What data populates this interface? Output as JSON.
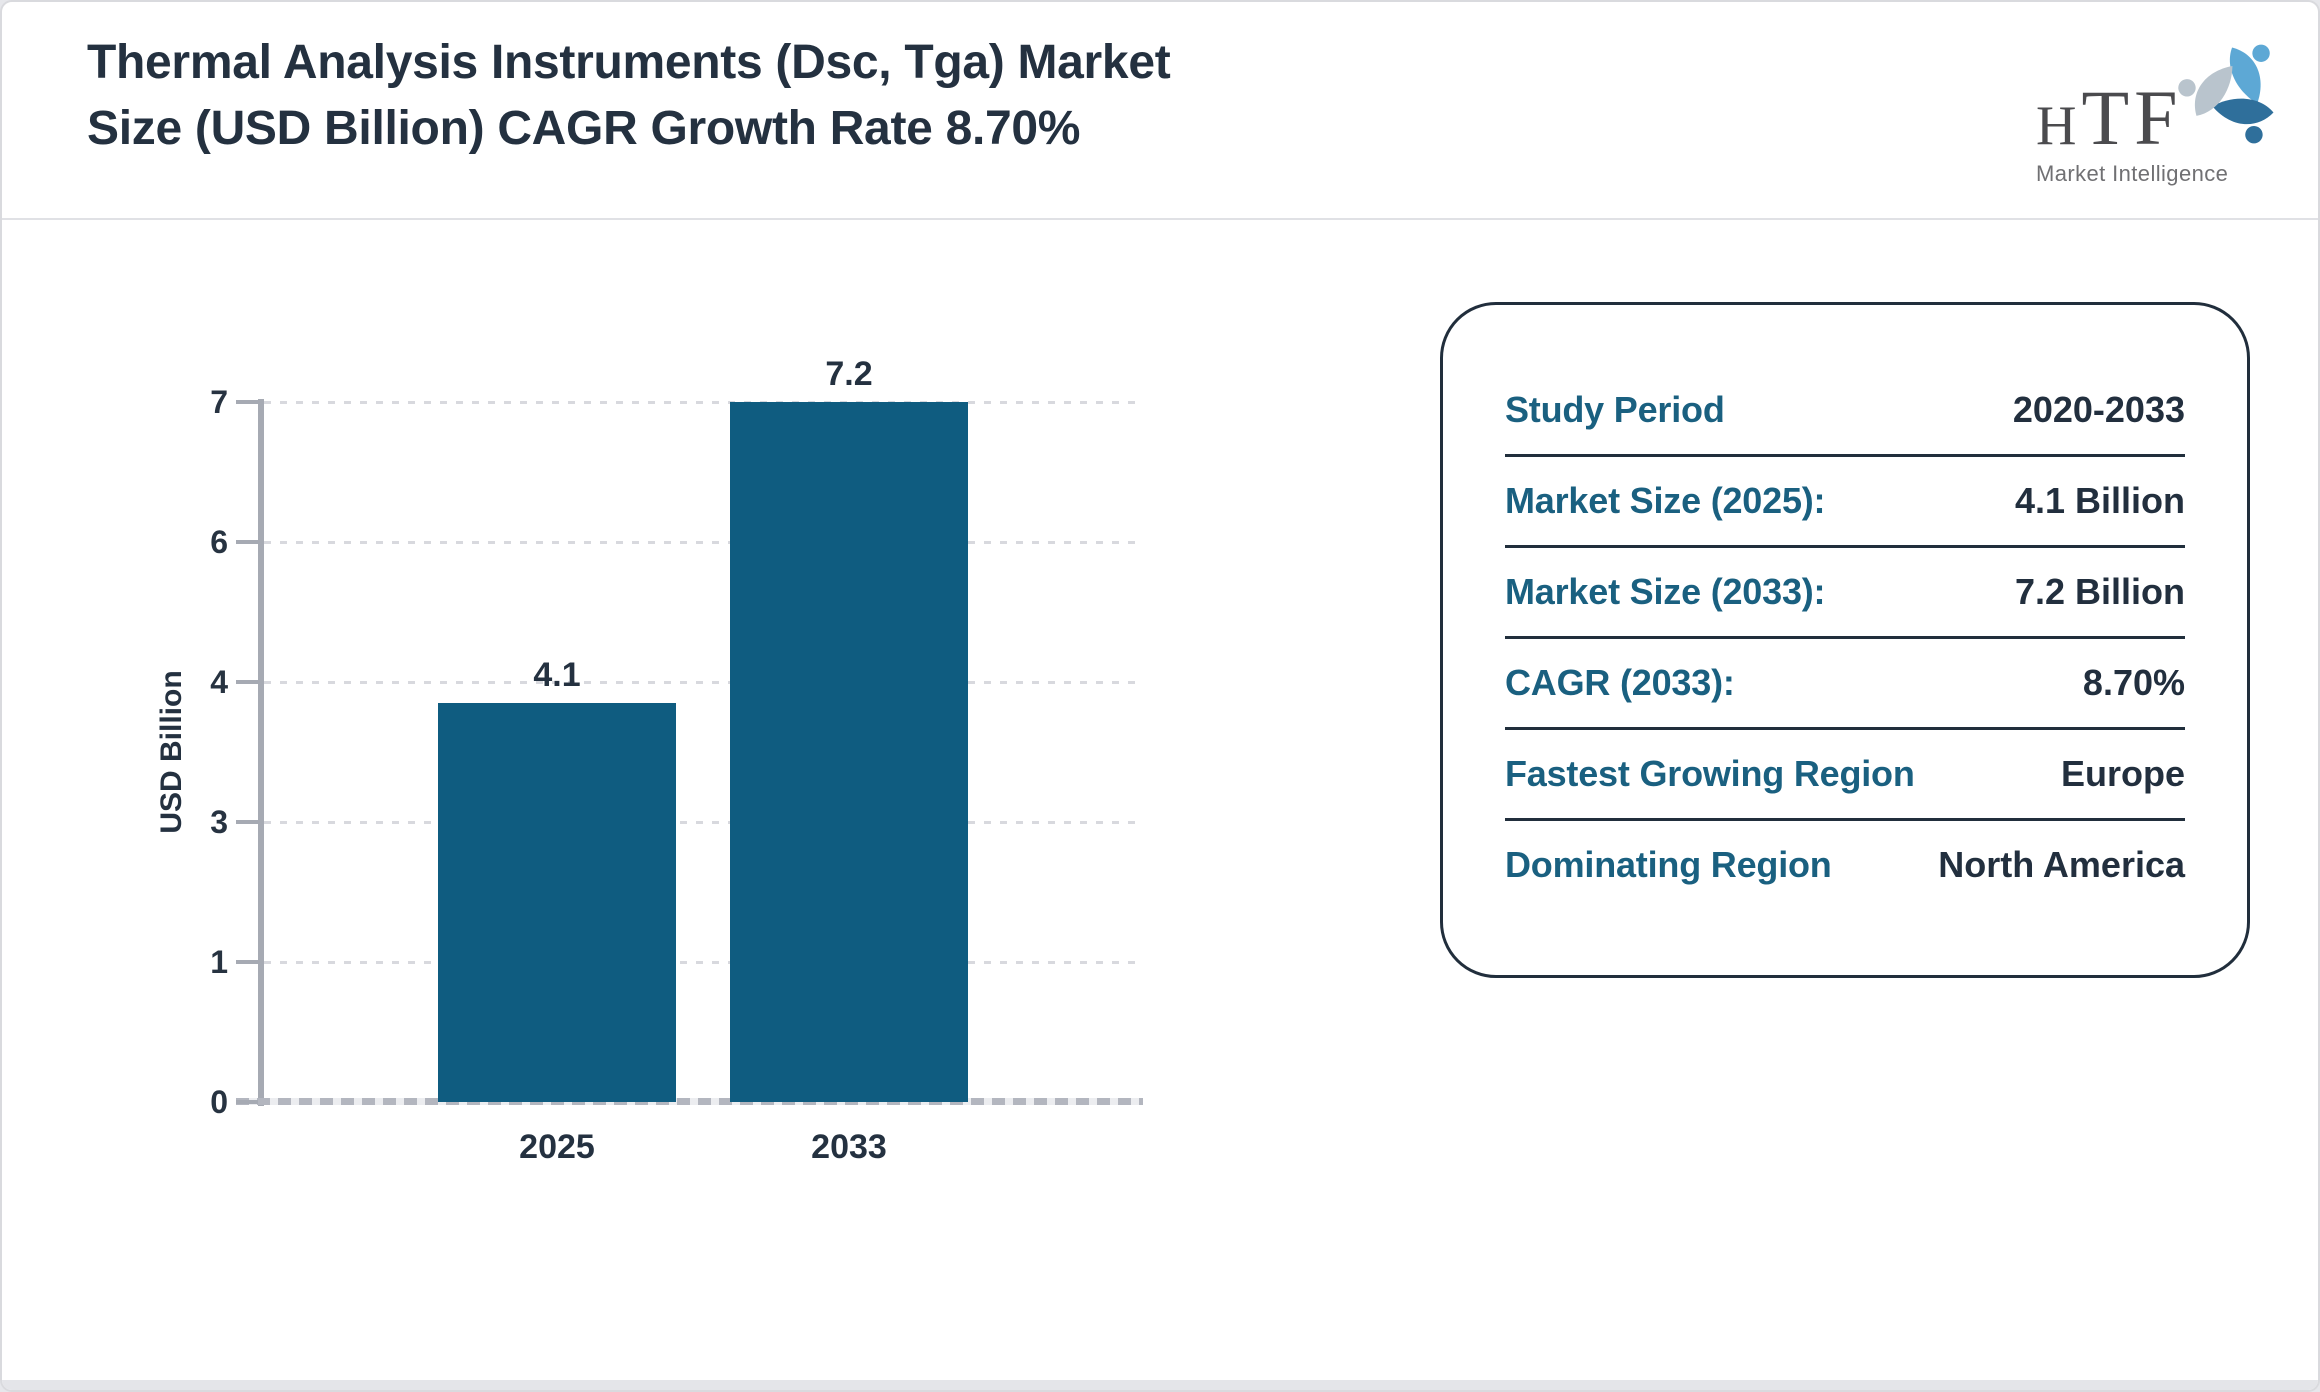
{
  "header": {
    "title_line1": "Thermal Analysis Instruments (Dsc, Tga) Market",
    "title_line2": "Size (USD Billion) CAGR Growth Rate 8.70%"
  },
  "logo": {
    "name": "HTF",
    "tagline": "Market Intelligence",
    "colors": {
      "name_gray": "#4b4b4e",
      "tagline_gray": "#707073",
      "swirl_light_blue": "#5da8d5",
      "swirl_pale_gray": "#b9c4cd",
      "swirl_steel_blue": "#2f6f9b"
    }
  },
  "chart_data": {
    "type": "bar",
    "title": "Thermal Analysis Instruments (Dsc, Tga) Market Size (USD Billion) CAGR Growth Rate 8.70%",
    "categories": [
      "2025",
      "2033"
    ],
    "values": [
      4.1,
      7.2
    ],
    "bar_labels": [
      "4.1",
      "7.2"
    ],
    "ylabel": "USD Billion",
    "xlabel": "",
    "ylim": [
      0,
      7.2
    ],
    "ytick_labels_bottom_to_top": [
      "0",
      "1",
      "3",
      "4",
      "6",
      "7"
    ],
    "grid": "horizontal dotted",
    "legend": "none",
    "bar_color": "#0f5c80",
    "label_color": "#243140"
  },
  "info_panel": {
    "rows": [
      {
        "label": "Study Period",
        "value": "2020-2033"
      },
      {
        "label": "Market Size (2025):",
        "value": "4.1 Billion"
      },
      {
        "label": "Market Size (2033):",
        "value": "7.2 Billion"
      },
      {
        "label": "CAGR (2033):",
        "value": "8.70%"
      },
      {
        "label": "Fastest Growing Region",
        "value": "Europe"
      },
      {
        "label": "Dominating Region",
        "value": "North America"
      }
    ],
    "label_color": "#1a6080",
    "value_color": "#222f3e",
    "border_color": "#212e3c"
  }
}
